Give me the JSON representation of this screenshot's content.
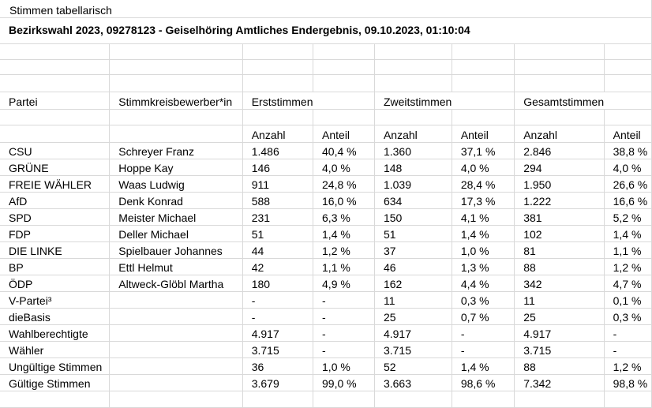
{
  "sheet": {
    "caption": "Stimmen tabellarisch",
    "title": "Bezirkswahl 2023, 09278123 - Geiselhöring Amtliches Endergebnis, 09.10.2023, 01:10:04"
  },
  "headers": {
    "partei": "Partei",
    "bewerber": "Stimmkreisbewerber*in",
    "erst": "Erststimmen",
    "zweit": "Zweitstimmen",
    "gesamt": "Gesamtstimmen",
    "anzahl": "Anzahl",
    "anteil": "Anteil"
  },
  "rows": [
    {
      "partei": "CSU",
      "bewerber": "Schreyer Franz",
      "e_anzahl": "1.486",
      "e_anteil": "40,4 %",
      "z_anzahl": "1.360",
      "z_anteil": "37,1 %",
      "g_anzahl": "2.846",
      "g_anteil": "38,8 %"
    },
    {
      "partei": "GRÜNE",
      "bewerber": "Hoppe Kay",
      "e_anzahl": "146",
      "e_anteil": "4,0 %",
      "z_anzahl": "148",
      "z_anteil": "4,0 %",
      "g_anzahl": "294",
      "g_anteil": "4,0 %"
    },
    {
      "partei": "FREIE WÄHLER",
      "bewerber": "Waas Ludwig",
      "e_anzahl": "911",
      "e_anteil": "24,8 %",
      "z_anzahl": "1.039",
      "z_anteil": "28,4 %",
      "g_anzahl": "1.950",
      "g_anteil": "26,6 %"
    },
    {
      "partei": "AfD",
      "bewerber": "Denk Konrad",
      "e_anzahl": "588",
      "e_anteil": "16,0 %",
      "z_anzahl": "634",
      "z_anteil": "17,3 %",
      "g_anzahl": "1.222",
      "g_anteil": "16,6 %"
    },
    {
      "partei": "SPD",
      "bewerber": "Meister Michael",
      "e_anzahl": "231",
      "e_anteil": "6,3 %",
      "z_anzahl": "150",
      "z_anteil": "4,1 %",
      "g_anzahl": "381",
      "g_anteil": "5,2 %"
    },
    {
      "partei": "FDP",
      "bewerber": "Deller Michael",
      "e_anzahl": "51",
      "e_anteil": "1,4 %",
      "z_anzahl": "51",
      "z_anteil": "1,4 %",
      "g_anzahl": "102",
      "g_anteil": "1,4 %"
    },
    {
      "partei": "DIE LINKE",
      "bewerber": "Spielbauer Johannes",
      "e_anzahl": "44",
      "e_anteil": "1,2 %",
      "z_anzahl": "37",
      "z_anteil": "1,0 %",
      "g_anzahl": "81",
      "g_anteil": "1,1 %"
    },
    {
      "partei": "BP",
      "bewerber": "Ettl Helmut",
      "e_anzahl": "42",
      "e_anteil": "1,1 %",
      "z_anzahl": "46",
      "z_anteil": "1,3 %",
      "g_anzahl": "88",
      "g_anteil": "1,2 %"
    },
    {
      "partei": "ÖDP",
      "bewerber": "Altweck-Glöbl Martha",
      "e_anzahl": "180",
      "e_anteil": "4,9 %",
      "z_anzahl": "162",
      "z_anteil": "4,4 %",
      "g_anzahl": "342",
      "g_anteil": "4,7 %"
    },
    {
      "partei": "V-Partei³",
      "bewerber": "",
      "e_anzahl": "-",
      "e_anteil": "-",
      "z_anzahl": "11",
      "z_anteil": "0,3 %",
      "g_anzahl": "11",
      "g_anteil": "0,1 %"
    },
    {
      "partei": "dieBasis",
      "bewerber": "",
      "e_anzahl": "-",
      "e_anteil": "-",
      "z_anzahl": "25",
      "z_anteil": "0,7 %",
      "g_anzahl": "25",
      "g_anteil": "0,3 %"
    },
    {
      "partei": "Wahlberechtigte",
      "bewerber": "",
      "e_anzahl": "4.917",
      "e_anteil": "-",
      "z_anzahl": "4.917",
      "z_anteil": "-",
      "g_anzahl": "4.917",
      "g_anteil": "-"
    },
    {
      "partei": "Wähler",
      "bewerber": "",
      "e_anzahl": "3.715",
      "e_anteil": "-",
      "z_anzahl": "3.715",
      "z_anteil": "-",
      "g_anzahl": "3.715",
      "g_anteil": "-"
    },
    {
      "partei": "Ungültige Stimmen",
      "bewerber": "",
      "e_anzahl": "36",
      "e_anteil": "1,0 %",
      "z_anzahl": "52",
      "z_anteil": "1,4 %",
      "g_anzahl": "88",
      "g_anteil": "1,2 %"
    },
    {
      "partei": "Gültige Stimmen",
      "bewerber": "",
      "e_anzahl": "3.679",
      "e_anteil": "99,0 %",
      "z_anzahl": "3.663",
      "z_anteil": "98,6 %",
      "g_anzahl": "7.342",
      "g_anteil": "98,8 %"
    }
  ]
}
